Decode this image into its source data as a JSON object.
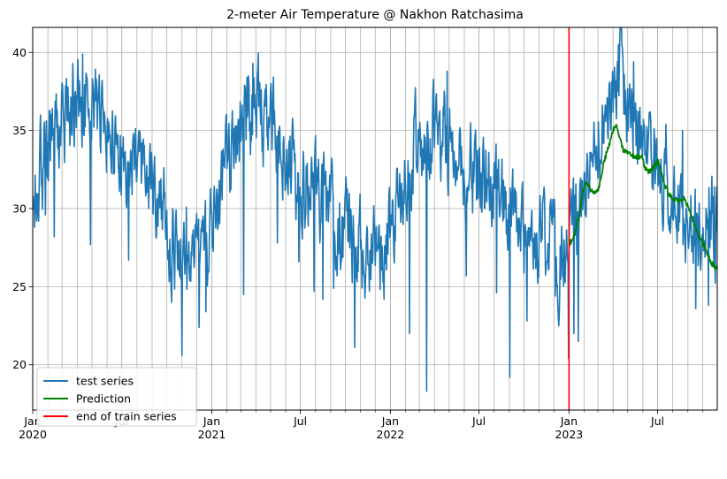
{
  "chart_data": {
    "type": "line",
    "title": "2-meter Air Temperature @ Nakhon Ratchasima",
    "x_range": [
      "2020-01-01",
      "2023-10-31"
    ],
    "y_range": [
      17.1,
      41.6
    ],
    "y_ticks": [
      20,
      25,
      30,
      35,
      40
    ],
    "x_major_ticks": [
      {
        "date": "2020-01-01",
        "label": "Jan",
        "year": "2020"
      },
      {
        "date": "2020-07-01",
        "label": "Jul",
        "year": ""
      },
      {
        "date": "2021-01-01",
        "label": "Jan",
        "year": "2021"
      },
      {
        "date": "2021-07-01",
        "label": "Jul",
        "year": ""
      },
      {
        "date": "2022-01-01",
        "label": "Jan",
        "year": "2022"
      },
      {
        "date": "2022-07-01",
        "label": "Jul",
        "year": ""
      },
      {
        "date": "2023-01-01",
        "label": "Jan",
        "year": "2023"
      },
      {
        "date": "2023-07-01",
        "label": "Jul",
        "year": ""
      }
    ],
    "grid": true,
    "minor_grid": "monthly",
    "legend_position": "bottom-left",
    "train_end_date": "2023-01-01",
    "series": [
      {
        "name": "test series",
        "color": "#1f77b4",
        "points": [
          [
            "2020-01-01",
            30.2
          ],
          [
            "2020-01-16",
            32.8
          ],
          [
            "2020-02-01",
            33.5
          ],
          [
            "2020-02-16",
            34.6
          ],
          [
            "2020-03-01",
            35.2
          ],
          [
            "2020-03-16",
            36.5
          ],
          [
            "2020-04-01",
            37.2
          ],
          [
            "2020-04-16",
            37.0
          ],
          [
            "2020-05-01",
            36.4
          ],
          [
            "2020-05-16",
            35.8
          ],
          [
            "2020-06-01",
            34.5
          ],
          [
            "2020-06-16",
            33.8
          ],
          [
            "2020-07-01",
            33.4
          ],
          [
            "2020-07-16",
            33.0
          ],
          [
            "2020-08-01",
            32.6
          ],
          [
            "2020-08-16",
            32.4
          ],
          [
            "2020-09-01",
            31.6
          ],
          [
            "2020-09-16",
            30.6
          ],
          [
            "2020-10-01",
            29.6
          ],
          [
            "2020-10-16",
            27.6
          ],
          [
            "2020-11-01",
            27.2
          ],
          [
            "2020-11-16",
            26.8
          ],
          [
            "2020-12-01",
            26.2
          ],
          [
            "2020-12-16",
            26.0
          ],
          [
            "2021-01-01",
            28.6
          ],
          [
            "2021-01-16",
            30.4
          ],
          [
            "2021-02-01",
            32.2
          ],
          [
            "2021-02-16",
            33.6
          ],
          [
            "2021-03-01",
            34.6
          ],
          [
            "2021-03-16",
            35.8
          ],
          [
            "2021-04-01",
            36.5
          ],
          [
            "2021-04-16",
            35.6
          ],
          [
            "2021-05-01",
            35.2
          ],
          [
            "2021-05-16",
            34.8
          ],
          [
            "2021-06-01",
            33.6
          ],
          [
            "2021-06-16",
            32.8
          ],
          [
            "2021-07-01",
            32.0
          ],
          [
            "2021-07-16",
            31.5
          ],
          [
            "2021-08-01",
            31.2
          ],
          [
            "2021-08-16",
            30.8
          ],
          [
            "2021-09-01",
            29.8
          ],
          [
            "2021-09-16",
            29.2
          ],
          [
            "2021-10-01",
            28.4
          ],
          [
            "2021-10-16",
            28.0
          ],
          [
            "2021-11-01",
            27.4
          ],
          [
            "2021-11-16",
            27.0
          ],
          [
            "2021-12-01",
            26.8
          ],
          [
            "2021-12-16",
            26.6
          ],
          [
            "2022-01-01",
            28.4
          ],
          [
            "2022-01-16",
            30.6
          ],
          [
            "2022-02-01",
            31.6
          ],
          [
            "2022-02-16",
            33.4
          ],
          [
            "2022-03-01",
            34.2
          ],
          [
            "2022-03-16",
            34.2
          ],
          [
            "2022-04-01",
            35.0
          ],
          [
            "2022-04-16",
            34.6
          ],
          [
            "2022-05-01",
            34.6
          ],
          [
            "2022-05-16",
            33.8
          ],
          [
            "2022-06-01",
            32.6
          ],
          [
            "2022-06-16",
            32.4
          ],
          [
            "2022-07-01",
            31.8
          ],
          [
            "2022-07-16",
            31.4
          ],
          [
            "2022-08-01",
            30.6
          ],
          [
            "2022-08-16",
            30.2
          ],
          [
            "2022-09-01",
            29.6
          ],
          [
            "2022-09-16",
            28.4
          ],
          [
            "2022-10-01",
            27.8
          ],
          [
            "2022-10-16",
            27.6
          ],
          [
            "2022-11-01",
            28.2
          ],
          [
            "2022-11-16",
            27.8
          ],
          [
            "2022-12-01",
            27.6
          ],
          [
            "2022-12-16",
            26.2
          ],
          [
            "2023-01-01",
            27.4
          ],
          [
            "2023-01-16",
            29.2
          ],
          [
            "2023-02-01",
            30.8
          ],
          [
            "2023-02-16",
            32.8
          ],
          [
            "2023-03-01",
            34.8
          ],
          [
            "2023-03-16",
            36.2
          ],
          [
            "2023-04-01",
            37.8
          ],
          [
            "2023-04-16",
            38.0
          ],
          [
            "2023-05-01",
            37.0
          ],
          [
            "2023-05-16",
            35.2
          ],
          [
            "2023-06-01",
            34.0
          ],
          [
            "2023-06-16",
            33.2
          ],
          [
            "2023-07-01",
            32.4
          ],
          [
            "2023-07-16",
            31.2
          ],
          [
            "2023-08-01",
            30.4
          ],
          [
            "2023-08-16",
            30.0
          ],
          [
            "2023-09-01",
            29.4
          ],
          [
            "2023-09-16",
            29.0
          ],
          [
            "2023-10-01",
            28.6
          ],
          [
            "2023-10-16",
            29.4
          ],
          [
            "2023-10-31",
            28.2
          ]
        ],
        "extremes": [
          [
            "2020-01-27",
            29.6
          ],
          [
            "2020-02-10",
            36.4
          ],
          [
            "2020-02-14",
            28.2
          ],
          [
            "2020-04-12",
            39.9
          ],
          [
            "2020-04-28",
            27.7
          ],
          [
            "2020-07-15",
            26.7
          ],
          [
            "2020-10-11",
            24.0
          ],
          [
            "2020-11-01",
            20.6
          ],
          [
            "2020-11-10",
            30.1
          ],
          [
            "2020-12-06",
            22.4
          ],
          [
            "2020-12-20",
            23.4
          ],
          [
            "2021-03-07",
            24.5
          ],
          [
            "2021-03-26",
            39.3
          ],
          [
            "2021-05-15",
            27.8
          ],
          [
            "2021-06-28",
            26.6
          ],
          [
            "2021-07-29",
            24.7
          ],
          [
            "2021-08-16",
            24.2
          ],
          [
            "2021-09-07",
            24.9
          ],
          [
            "2021-10-20",
            21.1
          ],
          [
            "2021-12-19",
            24.2
          ],
          [
            "2022-02-09",
            22.0
          ],
          [
            "2022-03-16",
            18.3
          ],
          [
            "2022-04-27",
            38.8
          ],
          [
            "2022-06-05",
            25.7
          ],
          [
            "2022-08-06",
            24.6
          ],
          [
            "2022-09-02",
            19.2
          ],
          [
            "2022-10-07",
            22.8
          ],
          [
            "2022-11-17",
            26.6
          ],
          [
            "2022-12-04",
            24.4
          ],
          [
            "2022-12-31",
            20.4
          ],
          [
            "2023-01-11",
            22.0
          ],
          [
            "2023-01-20",
            21.5
          ],
          [
            "2023-04-12",
            40.5
          ],
          [
            "2023-05-13",
            39.4
          ],
          [
            "2023-07-18",
            35.4
          ],
          [
            "2023-08-21",
            35.0
          ],
          [
            "2023-09-17",
            23.6
          ],
          [
            "2023-10-13",
            23.8
          ],
          [
            "2023-10-25",
            31.4
          ]
        ]
      },
      {
        "name": "Prediction",
        "color": "#008000",
        "points": [
          [
            "2023-01-01",
            27.7
          ],
          [
            "2023-01-11",
            28.2
          ],
          [
            "2023-01-22",
            29.6
          ],
          [
            "2023-01-29",
            31.0
          ],
          [
            "2023-02-03",
            31.6
          ],
          [
            "2023-02-12",
            31.4
          ],
          [
            "2023-02-22",
            30.9
          ],
          [
            "2023-03-03",
            31.3
          ],
          [
            "2023-03-12",
            32.8
          ],
          [
            "2023-03-23",
            34.0
          ],
          [
            "2023-04-02",
            35.1
          ],
          [
            "2023-04-07",
            35.4
          ],
          [
            "2023-04-14",
            34.6
          ],
          [
            "2023-04-21",
            33.8
          ],
          [
            "2023-04-30",
            33.6
          ],
          [
            "2023-05-09",
            33.4
          ],
          [
            "2023-05-20",
            33.3
          ],
          [
            "2023-05-30",
            33.3
          ],
          [
            "2023-06-06",
            32.6
          ],
          [
            "2023-06-14",
            32.3
          ],
          [
            "2023-06-26",
            32.8
          ],
          [
            "2023-07-01",
            33.0
          ],
          [
            "2023-07-07",
            32.5
          ],
          [
            "2023-07-14",
            31.7
          ],
          [
            "2023-07-24",
            30.9
          ],
          [
            "2023-08-03",
            30.6
          ],
          [
            "2023-08-14",
            30.5
          ],
          [
            "2023-08-24",
            30.6
          ],
          [
            "2023-09-03",
            30.1
          ],
          [
            "2023-09-10",
            29.3
          ],
          [
            "2023-09-21",
            28.4
          ],
          [
            "2023-10-01",
            27.8
          ],
          [
            "2023-10-10",
            27.2
          ],
          [
            "2023-10-19",
            26.5
          ],
          [
            "2023-10-27",
            26.3
          ],
          [
            "2023-10-31",
            26.2
          ]
        ]
      },
      {
        "name": "end of train series",
        "color": "#ff0000"
      }
    ]
  }
}
